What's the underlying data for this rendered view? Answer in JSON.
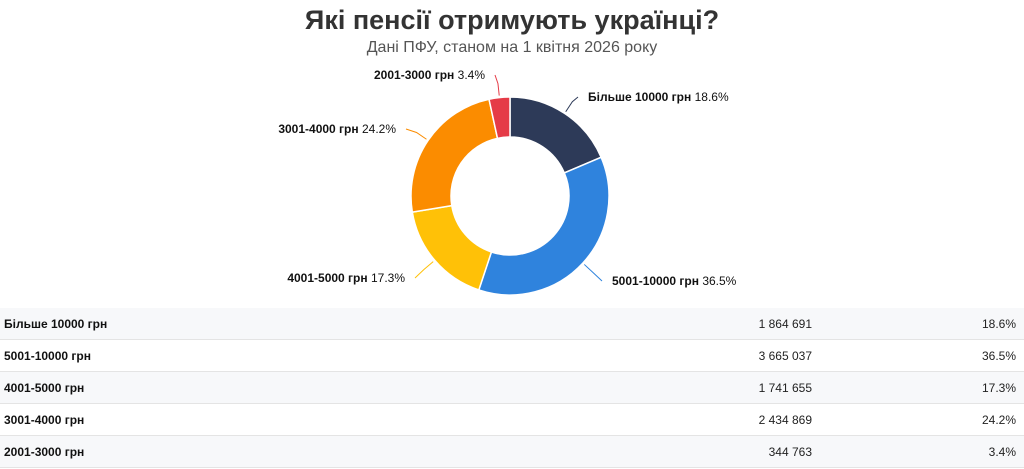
{
  "header": {
    "title": "Які пенсії отримують українці?",
    "subtitle": "Дані ПФУ, станом на 1 квітня 2026 року"
  },
  "chart_data": {
    "type": "pie",
    "donut": true,
    "title": "Які пенсії отримують українці?",
    "subtitle": "Дані ПФУ, станом на 1 квітня 2026 року",
    "slices": [
      {
        "label": "Більше 10000 грн",
        "count": "1 864 691",
        "value": 18.6,
        "pct_label": "18.6%",
        "color": "#2d3a58"
      },
      {
        "label": "5001-10000 грн",
        "count": "3 665 037",
        "value": 36.5,
        "pct_label": "36.5%",
        "color": "#2f83dd"
      },
      {
        "label": "4001-5000 грн",
        "count": "1 741 655",
        "value": 17.3,
        "pct_label": "17.3%",
        "color": "#ffc107"
      },
      {
        "label": "3001-4000 грн",
        "count": "2 434 869",
        "value": 24.2,
        "pct_label": "24.2%",
        "color": "#fb8c00"
      },
      {
        "label": "2001-3000 грн",
        "count": "344 763",
        "value": 3.4,
        "pct_label": "3.4%",
        "color": "#e53b47"
      }
    ]
  }
}
